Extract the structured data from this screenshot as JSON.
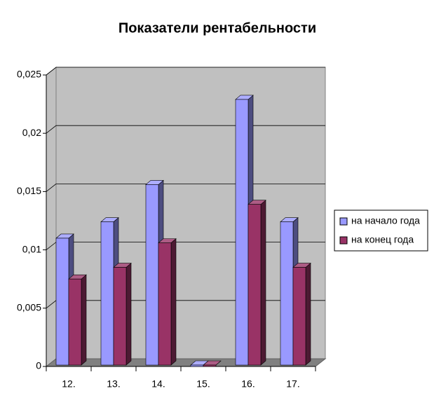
{
  "chart_data": {
    "type": "bar3d",
    "title": "Показатели рентабельности",
    "categories": [
      "12.",
      "13.",
      "14.",
      "15.",
      "16.",
      "17."
    ],
    "series": [
      {
        "name": "на начало года",
        "color": "#9999ff",
        "values": [
          0.011,
          0.0124,
          0.0156,
          0,
          0.0229,
          0.0124
        ]
      },
      {
        "name": "на конец года",
        "color": "#993366",
        "values": [
          0.0075,
          0.0085,
          0.0106,
          0,
          0.0139,
          0.0085
        ]
      }
    ],
    "ylim": [
      0,
      0.025
    ],
    "yticks": [
      0,
      {
        "value": 0.005,
        "label": "0,005"
      },
      {
        "value": 0.01,
        "label": "0,01"
      },
      {
        "value": 0.015,
        "label": "0,015"
      },
      {
        "value": 0.02,
        "label": "0,02"
      },
      {
        "value": 0.025,
        "label": "0,025"
      }
    ],
    "grid": true,
    "legend": "right"
  }
}
